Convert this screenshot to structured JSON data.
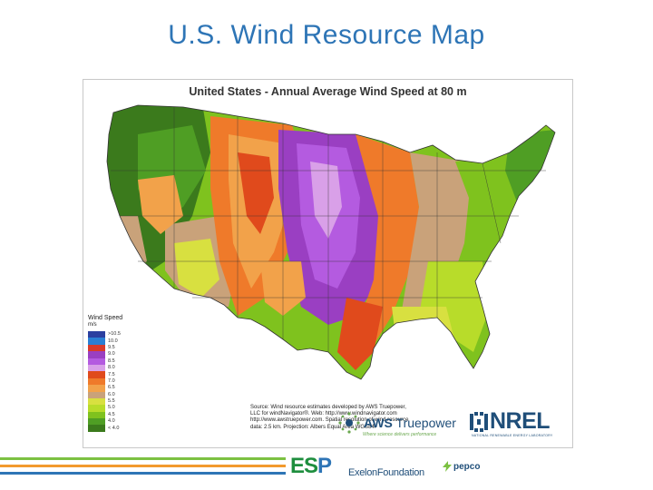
{
  "slide_title": "U.S. Wind Resource Map",
  "map": {
    "heading": "United States - Annual Average Wind Speed at 80 m",
    "legend": {
      "title": "Wind Speed",
      "units": "m/s",
      "entries": [
        {
          "label": ">10.5",
          "color": "#2b3fa0"
        },
        {
          "label": "10.0",
          "color": "#2a7fd4"
        },
        {
          "label": "9.5",
          "color": "#d83a2a"
        },
        {
          "label": "9.0",
          "color": "#9a3fc2"
        },
        {
          "label": "8.5",
          "color": "#b45be0"
        },
        {
          "label": "8.0",
          "color": "#d9a0e8"
        },
        {
          "label": "7.5",
          "color": "#e04a1c"
        },
        {
          "label": "7.0",
          "color": "#ef7a2a"
        },
        {
          "label": "6.5",
          "color": "#f2a24a"
        },
        {
          "label": "6.0",
          "color": "#c9a27a"
        },
        {
          "label": "5.5",
          "color": "#d8e040"
        },
        {
          "label": "5.0",
          "color": "#b8dc2a"
        },
        {
          "label": "4.5",
          "color": "#7fc21e"
        },
        {
          "label": "4.0",
          "color": "#4f9e24"
        },
        {
          "label": "< 4.0",
          "color": "#3b7a1c"
        }
      ]
    },
    "source_lines": [
      "Source: Wind resource estimates developed by AWS Truepower,",
      "LLC for windNavigator®. Web: http://www.windnavigator.com",
      "http://www.awstruepower.com. Spatial resolution of wind resource",
      "data: 2.5 km. Projection: Albers Equal Area WGS84."
    ],
    "aws_logo": {
      "prefix": "AWS",
      "name": "Truepower",
      "tagline": "Where science delivers performance"
    },
    "nrel_logo": {
      "name": "NREL",
      "subtitle": "NATIONAL RENEWABLE ENERGY LABORATORY"
    }
  },
  "footer": {
    "esp_logo": {
      "text_e": "ES",
      "text_p": "P"
    },
    "exelon": "ExelonFoundation",
    "pepco": "pepco"
  },
  "colors": {
    "title": "#2e75b6",
    "footer_green": "#7cc142",
    "footer_orange": "#f29a2e",
    "footer_blue": "#2e75b6"
  }
}
